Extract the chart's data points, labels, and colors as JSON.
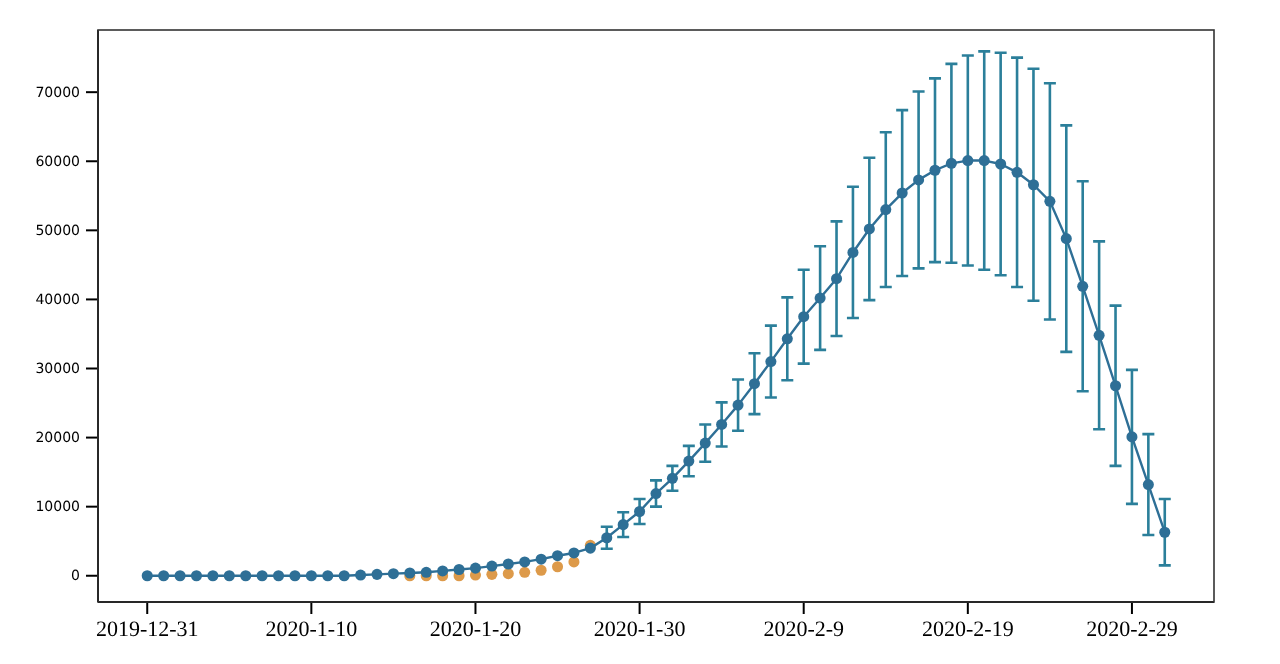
{
  "chart_data": {
    "type": "line",
    "marker": "circle",
    "grid": false,
    "xlim": [
      "2019-12-28",
      "2020-03-05"
    ],
    "ylim": [
      -3800,
      79000
    ],
    "xticks": [
      {
        "value": "2019-12-31",
        "label": "2019-12-31"
      },
      {
        "value": "2020-01-10",
        "label": "2020-1-10"
      },
      {
        "value": "2020-01-20",
        "label": "2020-1-20"
      },
      {
        "value": "2020-01-30",
        "label": "2020-1-30"
      },
      {
        "value": "2020-02-09",
        "label": "2020-2-9"
      },
      {
        "value": "2020-02-19",
        "label": "2020-2-19"
      },
      {
        "value": "2020-02-29",
        "label": "2020-2-29"
      }
    ],
    "yticks": [
      0,
      10000,
      20000,
      30000,
      40000,
      50000,
      60000,
      70000
    ],
    "series": [
      {
        "type": "scatter",
        "color": "#dd9a4a",
        "x": [
          "2020-01-16",
          "2020-01-17",
          "2020-01-18",
          "2020-01-19",
          "2020-01-20",
          "2020-01-21",
          "2020-01-22",
          "2020-01-23",
          "2020-01-24",
          "2020-01-25",
          "2020-01-26",
          "2020-01-27"
        ],
        "values": [
          0,
          0,
          0,
          0,
          100,
          200,
          300,
          500,
          800,
          1300,
          2000,
          4400
        ]
      },
      {
        "color": "#2e6f96",
        "x": [
          "2019-12-31",
          "2020-01-01",
          "2020-01-02",
          "2020-01-03",
          "2020-01-04",
          "2020-01-05",
          "2020-01-06",
          "2020-01-07",
          "2020-01-08",
          "2020-01-09",
          "2020-01-10",
          "2020-01-11",
          "2020-01-12",
          "2020-01-13",
          "2020-01-14",
          "2020-01-15",
          "2020-01-16",
          "2020-01-17",
          "2020-01-18",
          "2020-01-19",
          "2020-01-20",
          "2020-01-21",
          "2020-01-22",
          "2020-01-23",
          "2020-01-24",
          "2020-01-25",
          "2020-01-26",
          "2020-01-27",
          "2020-01-28",
          "2020-01-29",
          "2020-01-30",
          "2020-01-31",
          "2020-02-01",
          "2020-02-02",
          "2020-02-03",
          "2020-02-04",
          "2020-02-05",
          "2020-02-06",
          "2020-02-07",
          "2020-02-08",
          "2020-02-09",
          "2020-02-10",
          "2020-02-11",
          "2020-02-12",
          "2020-02-13",
          "2020-02-14",
          "2020-02-15",
          "2020-02-16",
          "2020-02-17",
          "2020-02-18",
          "2020-02-19",
          "2020-02-20",
          "2020-02-21",
          "2020-02-22",
          "2020-02-23",
          "2020-02-24",
          "2020-02-25",
          "2020-02-26",
          "2020-02-27",
          "2020-02-28",
          "2020-02-29",
          "2020-03-01",
          "2020-03-02"
        ],
        "values": [
          0,
          0,
          0,
          0,
          0,
          0,
          0,
          0,
          0,
          0,
          0,
          0,
          0,
          100,
          200,
          300,
          400,
          500,
          700,
          900,
          1100,
          1400,
          1700,
          2000,
          2400,
          2900,
          3300,
          4000,
          5500,
          7400,
          9300,
          11900,
          14100,
          16600,
          19200,
          21900,
          24700,
          27800,
          31000,
          34300,
          37500,
          40200,
          43000,
          46800,
          50200,
          53000,
          55400,
          57300,
          58700,
          59700,
          60100,
          60100,
          59600,
          58400,
          56600,
          54200,
          48800,
          41900,
          34800,
          27500,
          20100,
          13200,
          6300
        ],
        "errors": [
          null,
          null,
          null,
          null,
          null,
          null,
          null,
          null,
          null,
          null,
          null,
          null,
          null,
          null,
          null,
          null,
          null,
          null,
          null,
          null,
          null,
          null,
          null,
          null,
          null,
          null,
          null,
          null,
          1600,
          1800,
          1800,
          1900,
          1800,
          2200,
          2700,
          3200,
          3700,
          4400,
          5200,
          6000,
          6800,
          7500,
          8300,
          9500,
          10300,
          11200,
          12000,
          12800,
          13300,
          14400,
          15200,
          15800,
          16100,
          16600,
          16800,
          17100,
          16400,
          15200,
          13600,
          11600,
          9700,
          7300,
          4800
        ]
      }
    ]
  }
}
